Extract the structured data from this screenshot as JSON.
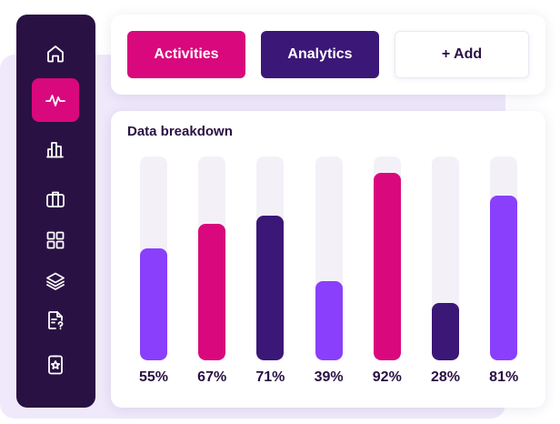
{
  "toolbar": {
    "activities_label": "Activities",
    "analytics_label": "Analytics",
    "add_label": "+ Add"
  },
  "sidebar": {
    "items": [
      {
        "name": "home",
        "icon": "home-icon",
        "active": false
      },
      {
        "name": "activity",
        "icon": "activity-icon",
        "active": true
      },
      {
        "name": "analytics",
        "icon": "bar-chart-icon",
        "active": false
      },
      {
        "name": "portfolio",
        "icon": "briefcase-icon",
        "active": false
      },
      {
        "name": "apps",
        "icon": "grid-icon",
        "active": false
      },
      {
        "name": "layers",
        "icon": "layers-icon",
        "active": false
      },
      {
        "name": "documents",
        "icon": "document-icon",
        "active": false
      },
      {
        "name": "rewards",
        "icon": "star-ticket-icon",
        "active": false
      }
    ]
  },
  "colors": {
    "sidebar": "#2a1143",
    "magenta": "#d9087d",
    "indigo": "#3b1777",
    "violet": "#8a3ffc",
    "track": "#f3f1f7"
  },
  "chart_data": {
    "type": "bar",
    "title": "Data breakdown",
    "categories": [],
    "values": [
      55,
      67,
      71,
      39,
      92,
      28,
      81
    ],
    "labels": [
      "55%",
      "67%",
      "71%",
      "39%",
      "92%",
      "28%",
      "81%"
    ],
    "bar_colors": [
      "#8a3ffc",
      "#d9087d",
      "#3b1777",
      "#8a3ffc",
      "#d9087d",
      "#3b1777",
      "#8a3ffc"
    ],
    "ylim": [
      0,
      100
    ],
    "grid": false
  }
}
